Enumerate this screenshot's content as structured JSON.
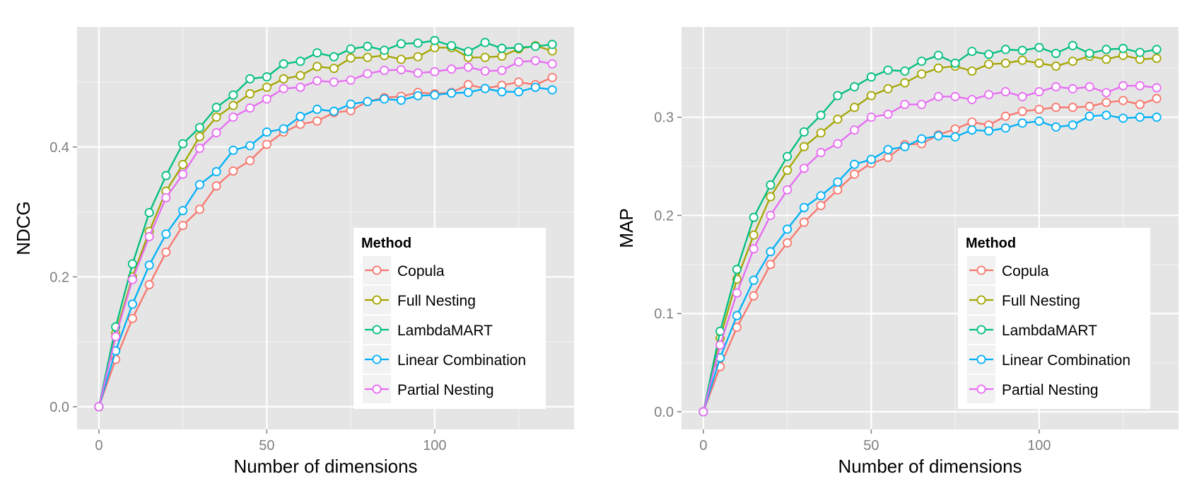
{
  "colors": {
    "panel_bg": "#e5e5e5",
    "grid_major": "#ffffff",
    "grid_minor": "#f2f2f2",
    "series": {
      "Copula": "#f8766d",
      "Full Nesting": "#a3a500",
      "LambdaMART": "#00bf7d",
      "Linear Combination": "#00b0f6",
      "Partial Nesting": "#e76bf3"
    }
  },
  "chart_data": [
    {
      "type": "line",
      "xlabel": "Number of dimensions",
      "ylabel": "NDCG",
      "xlim": [
        -6.5,
        141.5
      ],
      "ylim": [
        -0.035,
        0.585
      ],
      "xticks": [
        0,
        50,
        100
      ],
      "yticks": [
        0.0,
        0.2,
        0.4
      ],
      "ytick_labels": [
        "0.0",
        "0.2",
        "0.4"
      ],
      "grid": true,
      "legend": {
        "title": "Method",
        "placement": "bottom-right",
        "entries": [
          "Copula",
          "Full Nesting",
          "LambdaMART",
          "Linear Combination",
          "Partial Nesting"
        ]
      },
      "x": [
        0,
        5,
        10,
        15,
        20,
        25,
        30,
        35,
        40,
        45,
        50,
        55,
        60,
        65,
        70,
        75,
        80,
        85,
        90,
        95,
        100,
        105,
        110,
        115,
        120,
        125,
        130,
        135
      ],
      "series": [
        {
          "name": "Copula",
          "values": [
            0,
            0.073,
            0.136,
            0.188,
            0.238,
            0.279,
            0.304,
            0.34,
            0.363,
            0.379,
            0.404,
            0.423,
            0.435,
            0.44,
            0.453,
            0.456,
            0.47,
            0.476,
            0.478,
            0.484,
            0.482,
            0.484,
            0.496,
            0.49,
            0.495,
            0.5,
            0.496,
            0.507
          ]
        },
        {
          "name": "Full Nesting",
          "values": [
            0,
            0.113,
            0.2,
            0.27,
            0.332,
            0.373,
            0.416,
            0.446,
            0.464,
            0.482,
            0.492,
            0.505,
            0.51,
            0.524,
            0.521,
            0.537,
            0.538,
            0.541,
            0.535,
            0.539,
            0.553,
            0.553,
            0.538,
            0.538,
            0.54,
            0.551,
            0.556,
            0.548
          ]
        },
        {
          "name": "LambdaMART",
          "values": [
            0,
            0.123,
            0.22,
            0.299,
            0.356,
            0.405,
            0.43,
            0.461,
            0.48,
            0.505,
            0.508,
            0.528,
            0.532,
            0.545,
            0.539,
            0.551,
            0.555,
            0.549,
            0.559,
            0.56,
            0.564,
            0.556,
            0.547,
            0.561,
            0.552,
            0.553,
            0.555,
            0.558
          ]
        },
        {
          "name": "Linear Combination",
          "values": [
            0,
            0.086,
            0.158,
            0.218,
            0.266,
            0.302,
            0.342,
            0.362,
            0.395,
            0.402,
            0.423,
            0.428,
            0.447,
            0.458,
            0.455,
            0.466,
            0.47,
            0.474,
            0.472,
            0.479,
            0.48,
            0.483,
            0.484,
            0.49,
            0.485,
            0.485,
            0.492,
            0.488
          ]
        },
        {
          "name": "Partial Nesting",
          "values": [
            0,
            0.108,
            0.196,
            0.262,
            0.322,
            0.358,
            0.398,
            0.422,
            0.446,
            0.46,
            0.474,
            0.49,
            0.492,
            0.502,
            0.5,
            0.503,
            0.513,
            0.518,
            0.519,
            0.514,
            0.516,
            0.52,
            0.523,
            0.517,
            0.518,
            0.531,
            0.533,
            0.528
          ]
        }
      ]
    },
    {
      "type": "line",
      "xlabel": "Number of dimensions",
      "ylabel": "MAP",
      "xlim": [
        -6.5,
        141.5
      ],
      "ylim": [
        -0.018,
        0.392
      ],
      "xticks": [
        0,
        50,
        100
      ],
      "yticks": [
        0.0,
        0.1,
        0.2,
        0.3
      ],
      "ytick_labels": [
        "0.0",
        "0.1",
        "0.2",
        "0.3"
      ],
      "grid": true,
      "legend": {
        "title": "Method",
        "placement": "bottom-right",
        "entries": [
          "Copula",
          "Full Nesting",
          "LambdaMART",
          "Linear Combination",
          "Partial Nesting"
        ]
      },
      "x": [
        0,
        5,
        10,
        15,
        20,
        25,
        30,
        35,
        40,
        45,
        50,
        55,
        60,
        65,
        70,
        75,
        80,
        85,
        90,
        95,
        100,
        105,
        110,
        115,
        120,
        125,
        130,
        135
      ],
      "series": [
        {
          "name": "Copula",
          "values": [
            0,
            0.046,
            0.086,
            0.118,
            0.15,
            0.172,
            0.193,
            0.21,
            0.226,
            0.242,
            0.253,
            0.259,
            0.272,
            0.273,
            0.282,
            0.288,
            0.295,
            0.292,
            0.301,
            0.306,
            0.308,
            0.31,
            0.31,
            0.311,
            0.315,
            0.317,
            0.313,
            0.319
          ]
        },
        {
          "name": "Full Nesting",
          "values": [
            0,
            0.075,
            0.135,
            0.18,
            0.219,
            0.246,
            0.27,
            0.284,
            0.298,
            0.31,
            0.322,
            0.329,
            0.335,
            0.344,
            0.35,
            0.352,
            0.347,
            0.354,
            0.355,
            0.358,
            0.355,
            0.352,
            0.357,
            0.362,
            0.359,
            0.363,
            0.359,
            0.36
          ]
        },
        {
          "name": "LambdaMART",
          "values": [
            0,
            0.082,
            0.145,
            0.198,
            0.231,
            0.26,
            0.285,
            0.302,
            0.322,
            0.331,
            0.341,
            0.348,
            0.347,
            0.357,
            0.363,
            0.355,
            0.367,
            0.364,
            0.369,
            0.368,
            0.371,
            0.365,
            0.373,
            0.365,
            0.369,
            0.37,
            0.366,
            0.369
          ]
        },
        {
          "name": "Linear Combination",
          "values": [
            0,
            0.055,
            0.098,
            0.134,
            0.163,
            0.186,
            0.208,
            0.22,
            0.234,
            0.252,
            0.257,
            0.267,
            0.27,
            0.278,
            0.281,
            0.28,
            0.287,
            0.286,
            0.289,
            0.294,
            0.296,
            0.29,
            0.292,
            0.301,
            0.302,
            0.299,
            0.3,
            0.3
          ]
        },
        {
          "name": "Partial Nesting",
          "values": [
            0,
            0.068,
            0.121,
            0.166,
            0.2,
            0.226,
            0.248,
            0.264,
            0.273,
            0.287,
            0.3,
            0.303,
            0.313,
            0.313,
            0.321,
            0.321,
            0.318,
            0.323,
            0.326,
            0.321,
            0.326,
            0.331,
            0.329,
            0.331,
            0.325,
            0.332,
            0.332,
            0.33
          ]
        }
      ]
    }
  ]
}
